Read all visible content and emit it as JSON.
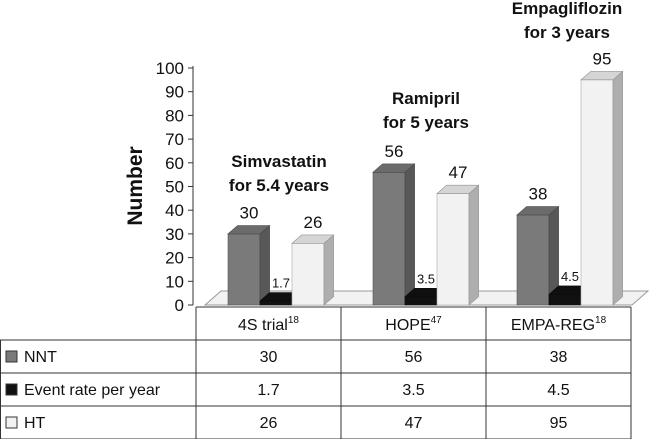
{
  "chart_data": {
    "type": "bar",
    "ylabel": "Number",
    "ylim": [
      0,
      100
    ],
    "yticks": [
      "0",
      "10",
      "20",
      "30",
      "40",
      "50",
      "60",
      "70",
      "80",
      "90",
      "100"
    ],
    "categories": [
      {
        "name": "4S trial",
        "sup": "18"
      },
      {
        "name": "HOPE",
        "sup": "47"
      },
      {
        "name": "EMPA-REG",
        "sup": "18"
      }
    ],
    "series": [
      {
        "name": "NNT",
        "values": [
          30,
          56,
          38
        ],
        "labels": [
          "30",
          "56",
          "38"
        ],
        "color": "#7a7a7a"
      },
      {
        "name": "Event rate per year",
        "values": [
          1.7,
          3.5,
          4.5
        ],
        "labels": [
          "1.7",
          "3.5",
          "4.5"
        ],
        "color": "#111111"
      },
      {
        "name": "HT",
        "values": [
          26,
          47,
          95
        ],
        "labels": [
          "26",
          "47",
          "95"
        ],
        "color": "#f2f2f2"
      }
    ],
    "annotations": [
      {
        "lines": [
          "Simvastatin",
          "for 5.4 years"
        ]
      },
      {
        "lines": [
          "Ramipril",
          "for 5 years"
        ]
      },
      {
        "lines": [
          "Empagliflozin",
          "for 3 years"
        ]
      }
    ]
  }
}
